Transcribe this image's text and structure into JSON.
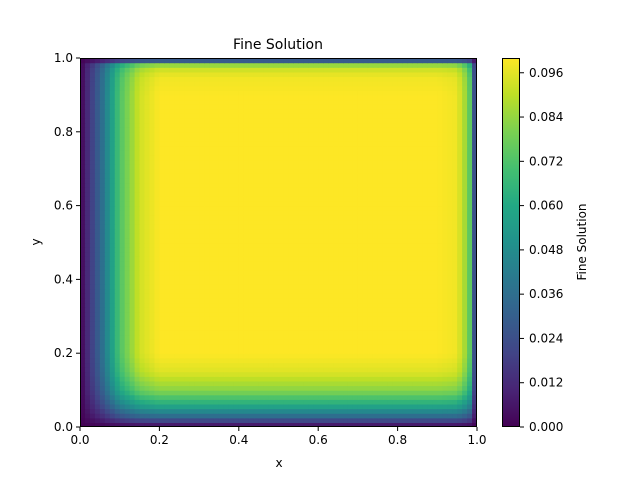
{
  "chart_data": {
    "type": "heatmap",
    "title": "Fine Solution",
    "xlabel": "x",
    "ylabel": "y",
    "xlim": [
      0.0,
      1.0
    ],
    "ylim": [
      0.0,
      1.0
    ],
    "x_ticks": [
      "0.0",
      "0.2",
      "0.4",
      "0.6",
      "0.8",
      "1.0"
    ],
    "y_ticks": [
      "0.0",
      "0.2",
      "0.4",
      "0.6",
      "0.8",
      "1.0"
    ],
    "colormap": "viridis",
    "colorbar": {
      "label": "Fine Solution",
      "range": [
        0.0,
        0.1
      ],
      "ticks": [
        "0.000",
        "0.012",
        "0.024",
        "0.036",
        "0.048",
        "0.060",
        "0.072",
        "0.084",
        "0.096"
      ]
    },
    "field_profile": {
      "x": [
        0.0,
        0.05,
        0.1,
        0.15,
        0.2,
        0.5,
        0.9,
        0.95,
        0.98,
        1.0
      ],
      "x_factor": [
        0.0,
        0.32,
        0.72,
        0.93,
        1.0,
        1.0,
        1.0,
        0.98,
        0.8,
        0.0
      ],
      "y": [
        0.0,
        0.03,
        0.06,
        0.1,
        0.15,
        0.2,
        0.5,
        0.9,
        0.95,
        0.98,
        1.0
      ],
      "y_factor": [
        0.0,
        0.35,
        0.6,
        0.82,
        0.95,
        1.0,
        1.0,
        1.0,
        0.98,
        0.9,
        0.0
      ],
      "max_value": 0.1
    },
    "grid": false,
    "legend": "colorbar-right"
  }
}
